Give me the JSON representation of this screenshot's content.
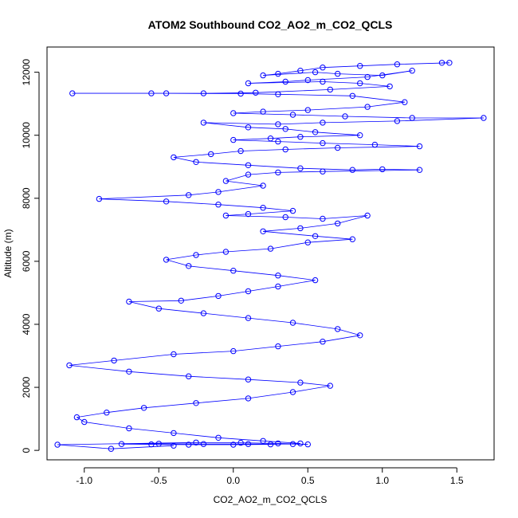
{
  "chart_data": {
    "type": "scatter",
    "title": "ATOM2 Southbound CO2_AO2_m_CO2_QCLS",
    "xlabel": "CO2_AO2_m_CO2_QCLS",
    "ylabel": "Altitude (m)",
    "xlim": [
      -1.25,
      1.75
    ],
    "ylim": [
      -300,
      12800
    ],
    "xticks": [
      -1.0,
      -0.5,
      0.0,
      0.5,
      1.0,
      1.5
    ],
    "xtick_labels": [
      "-1.0",
      "-0.5",
      "0.0",
      "0.5",
      "1.0",
      "1.5"
    ],
    "yticks": [
      0,
      2000,
      4000,
      6000,
      8000,
      10000,
      12000
    ],
    "ytick_labels": [
      "0",
      "2000",
      "4000",
      "6000",
      "8000",
      "10000",
      "12000"
    ],
    "grid": false,
    "legend": "none",
    "series": [
      {
        "color": "#0000ff",
        "marker": "open-circle",
        "line": true,
        "points": [
          [
            1.4,
            12300
          ],
          [
            1.45,
            12300
          ],
          [
            1.1,
            12250
          ],
          [
            0.85,
            12200
          ],
          [
            0.6,
            12150
          ],
          [
            0.45,
            12050
          ],
          [
            0.3,
            11950
          ],
          [
            0.2,
            11900
          ],
          [
            0.55,
            12000
          ],
          [
            0.7,
            11950
          ],
          [
            1.0,
            11900
          ],
          [
            1.2,
            12050
          ],
          [
            0.9,
            11850
          ],
          [
            0.5,
            11750
          ],
          [
            0.35,
            11700
          ],
          [
            0.1,
            11650
          ],
          [
            0.6,
            11700
          ],
          [
            0.85,
            11650
          ],
          [
            1.05,
            11550
          ],
          [
            0.65,
            11450
          ],
          [
            0.15,
            11350
          ],
          [
            -0.2,
            11330
          ],
          [
            -0.55,
            11330
          ],
          [
            -1.08,
            11330
          ],
          [
            -0.45,
            11330
          ],
          [
            0.05,
            11320
          ],
          [
            0.3,
            11300
          ],
          [
            0.8,
            11250
          ],
          [
            1.15,
            11050
          ],
          [
            0.9,
            10900
          ],
          [
            0.5,
            10800
          ],
          [
            0.2,
            10750
          ],
          [
            0.0,
            10700
          ],
          [
            0.4,
            10650
          ],
          [
            0.75,
            10600
          ],
          [
            1.2,
            10550
          ],
          [
            1.68,
            10550
          ],
          [
            1.1,
            10450
          ],
          [
            0.6,
            10400
          ],
          [
            0.3,
            10350
          ],
          [
            -0.2,
            10400
          ],
          [
            0.1,
            10250
          ],
          [
            0.35,
            10200
          ],
          [
            0.55,
            10100
          ],
          [
            0.85,
            10000
          ],
          [
            0.45,
            9950
          ],
          [
            0.25,
            9900
          ],
          [
            0.0,
            9850
          ],
          [
            0.3,
            9800
          ],
          [
            0.6,
            9750
          ],
          [
            0.95,
            9700
          ],
          [
            1.25,
            9650
          ],
          [
            0.7,
            9600
          ],
          [
            0.35,
            9550
          ],
          [
            0.05,
            9500
          ],
          [
            -0.15,
            9400
          ],
          [
            -0.4,
            9300
          ],
          [
            -0.25,
            9150
          ],
          [
            0.1,
            9050
          ],
          [
            0.45,
            8950
          ],
          [
            0.8,
            8900
          ],
          [
            1.0,
            8920
          ],
          [
            1.25,
            8900
          ],
          [
            0.6,
            8850
          ],
          [
            0.3,
            8820
          ],
          [
            0.1,
            8750
          ],
          [
            -0.05,
            8550
          ],
          [
            0.2,
            8400
          ],
          [
            -0.1,
            8200
          ],
          [
            -0.3,
            8100
          ],
          [
            -0.9,
            7980
          ],
          [
            -0.45,
            7900
          ],
          [
            -0.1,
            7800
          ],
          [
            0.2,
            7700
          ],
          [
            0.4,
            7600
          ],
          [
            0.1,
            7500
          ],
          [
            -0.05,
            7450
          ],
          [
            0.35,
            7400
          ],
          [
            0.6,
            7350
          ],
          [
            0.9,
            7450
          ],
          [
            0.7,
            7200
          ],
          [
            0.45,
            7050
          ],
          [
            0.2,
            6950
          ],
          [
            0.55,
            6800
          ],
          [
            0.8,
            6700
          ],
          [
            0.5,
            6600
          ],
          [
            0.25,
            6400
          ],
          [
            -0.05,
            6300
          ],
          [
            -0.25,
            6200
          ],
          [
            -0.45,
            6050
          ],
          [
            -0.3,
            5850
          ],
          [
            0.0,
            5700
          ],
          [
            0.3,
            5550
          ],
          [
            0.55,
            5400
          ],
          [
            0.3,
            5200
          ],
          [
            0.1,
            5050
          ],
          [
            -0.1,
            4900
          ],
          [
            -0.35,
            4750
          ],
          [
            -0.7,
            4720
          ],
          [
            -0.5,
            4500
          ],
          [
            -0.2,
            4350
          ],
          [
            0.1,
            4200
          ],
          [
            0.4,
            4050
          ],
          [
            0.7,
            3850
          ],
          [
            0.85,
            3650
          ],
          [
            0.6,
            3450
          ],
          [
            0.3,
            3300
          ],
          [
            0.0,
            3150
          ],
          [
            -0.4,
            3050
          ],
          [
            -0.8,
            2850
          ],
          [
            -1.1,
            2700
          ],
          [
            -0.7,
            2500
          ],
          [
            -0.3,
            2350
          ],
          [
            0.1,
            2250
          ],
          [
            0.45,
            2150
          ],
          [
            0.65,
            2050
          ],
          [
            0.4,
            1850
          ],
          [
            0.1,
            1650
          ],
          [
            -0.25,
            1500
          ],
          [
            -0.6,
            1350
          ],
          [
            -0.85,
            1200
          ],
          [
            -1.05,
            1050
          ],
          [
            -1.0,
            900
          ],
          [
            -0.7,
            700
          ],
          [
            -0.4,
            550
          ],
          [
            -0.1,
            400
          ],
          [
            0.2,
            300
          ],
          [
            0.45,
            220
          ],
          [
            0.25,
            190
          ],
          [
            0.0,
            180
          ],
          [
            -0.3,
            180
          ],
          [
            -0.55,
            190
          ],
          [
            -0.75,
            200
          ],
          [
            -0.5,
            210
          ],
          [
            -0.2,
            200
          ],
          [
            0.1,
            200
          ],
          [
            0.4,
            200
          ],
          [
            0.5,
            190
          ],
          [
            0.3,
            220
          ],
          [
            0.05,
            240
          ],
          [
            -0.25,
            250
          ],
          [
            -1.18,
            180
          ],
          [
            -0.82,
            50
          ],
          [
            -0.4,
            150
          ]
        ]
      }
    ]
  }
}
